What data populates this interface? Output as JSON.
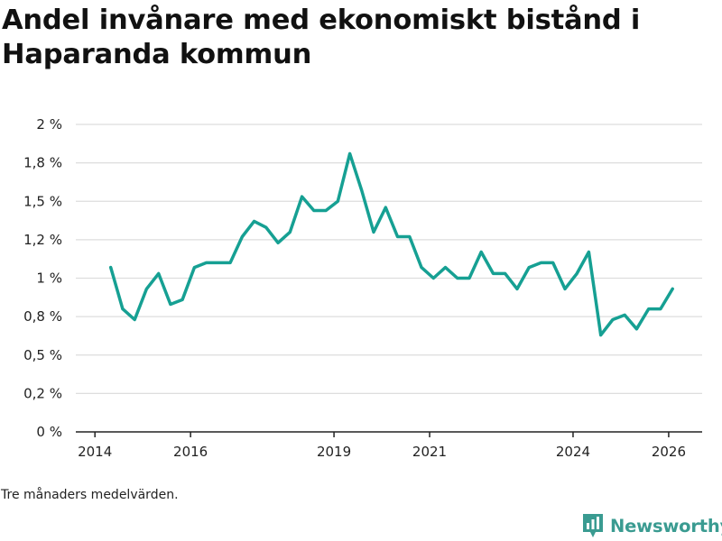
{
  "title": "Andel invånare med ekonomiskt bistånd i Haparanda kommun",
  "caption": "Tre månaders medelvärden.",
  "brand": {
    "name": "Newsworthy",
    "icon": "bar-chart-logo-icon",
    "color": "#3a9b91"
  },
  "colors": {
    "line": "#16a093",
    "grid": "#dddddd",
    "axis": "#222222"
  },
  "chart_data": {
    "type": "line",
    "title": "Andel invånare med ekonomiskt bistånd i Haparanda kommun",
    "xlabel": "",
    "ylabel": "",
    "xlim": [
      2013.6,
      2026.7
    ],
    "ylim": [
      0,
      2
    ],
    "grid": true,
    "x_ticks": [
      {
        "value": 2014,
        "label": "2014"
      },
      {
        "value": 2016,
        "label": "2016"
      },
      {
        "value": 2019,
        "label": "2019"
      },
      {
        "value": 2021,
        "label": "2021"
      },
      {
        "value": 2024,
        "label": "2024"
      },
      {
        "value": 2026,
        "label": "2026"
      }
    ],
    "y_ticks": [
      {
        "value": 0,
        "label": "0 %"
      },
      {
        "value": 0.25,
        "label": "0,2 %"
      },
      {
        "value": 0.5,
        "label": "0,5 %"
      },
      {
        "value": 0.75,
        "label": "0,8 %"
      },
      {
        "value": 1.0,
        "label": "1 %"
      },
      {
        "value": 1.25,
        "label": "1,2 %"
      },
      {
        "value": 1.5,
        "label": "1,5 %"
      },
      {
        "value": 1.75,
        "label": "1,8 %"
      },
      {
        "value": 2.0,
        "label": "2 %"
      }
    ],
    "series": [
      {
        "name": "Andel invånare med ekonomiskt bistånd",
        "x": [
          2014.33,
          2014.58,
          2014.83,
          2015.08,
          2015.33,
          2015.58,
          2015.83,
          2016.08,
          2016.33,
          2016.58,
          2016.83,
          2017.08,
          2017.33,
          2017.58,
          2017.83,
          2018.08,
          2018.33,
          2018.58,
          2018.83,
          2019.08,
          2019.33,
          2019.58,
          2019.83,
          2020.08,
          2020.33,
          2020.58,
          2020.83,
          2021.08,
          2021.33,
          2021.58,
          2021.83,
          2022.08,
          2022.33,
          2022.58,
          2022.83,
          2023.08,
          2023.33,
          2023.58,
          2023.83,
          2024.08,
          2024.33,
          2024.58,
          2024.83,
          2025.08,
          2025.33,
          2025.58,
          2025.83,
          2026.08
        ],
        "values": [
          1.07,
          0.8,
          0.73,
          0.93,
          1.03,
          0.83,
          0.86,
          1.07,
          1.1,
          1.1,
          1.1,
          1.27,
          1.37,
          1.33,
          1.23,
          1.3,
          1.53,
          1.44,
          1.44,
          1.5,
          1.81,
          1.57,
          1.3,
          1.46,
          1.27,
          1.27,
          1.07,
          1.0,
          1.07,
          1.0,
          1.0,
          1.17,
          1.03,
          1.03,
          0.93,
          1.07,
          1.1,
          1.1,
          0.93,
          1.03,
          1.17,
          0.63,
          0.73,
          0.76,
          0.67,
          0.8,
          0.8,
          0.93
        ]
      }
    ]
  }
}
